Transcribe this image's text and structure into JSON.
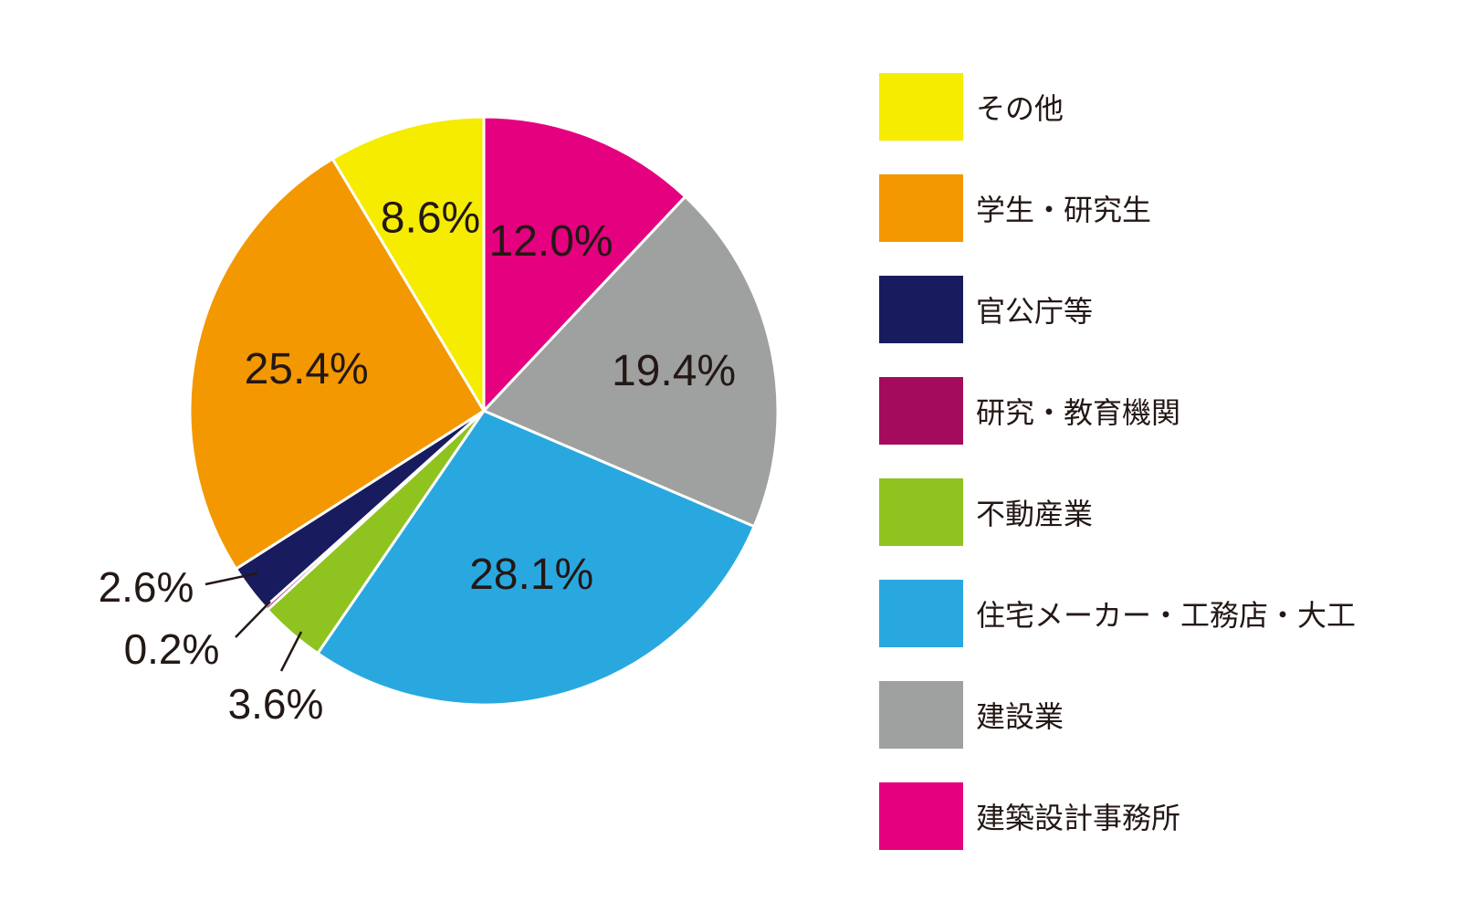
{
  "chart_data": {
    "type": "pie",
    "start": "12 o'clock",
    "direction": "clockwise",
    "slices": [
      {
        "name": "建築設計事務所",
        "value": 12.0,
        "label": "12.0%",
        "color": "#e4007f"
      },
      {
        "name": "建設業",
        "value": 19.4,
        "label": "19.4%",
        "color": "#9fa0a0"
      },
      {
        "name": "住宅メーカー・工務店・大工",
        "value": 28.1,
        "label": "28.1%",
        "color": "#29a8e0"
      },
      {
        "name": "不動産業",
        "value": 3.6,
        "label": "3.6%",
        "color": "#8fc31f"
      },
      {
        "name": "研究・教育機関",
        "value": 0.2,
        "label": "0.2%",
        "color": "#a40b5d"
      },
      {
        "name": "官公庁等",
        "value": 2.6,
        "label": "2.6%",
        "color": "#181c5e"
      },
      {
        "name": "学生・研究生",
        "value": 25.4,
        "label": "25.4%",
        "color": "#f39800"
      },
      {
        "name": "その他",
        "value": 8.6,
        "label": "8.6%",
        "color": "#f6ec00"
      }
    ],
    "legend": {
      "placement": "right",
      "entries": [
        {
          "label": "その他",
          "color": "#f6ec00"
        },
        {
          "label": "学生・研究生",
          "color": "#f39800"
        },
        {
          "label": "官公庁等",
          "color": "#181c5e"
        },
        {
          "label": "研究・教育機関",
          "color": "#a40b5d"
        },
        {
          "label": "不動産業",
          "color": "#8fc31f"
        },
        {
          "label": "住宅メーカー・工務店・大工",
          "color": "#29a8e0"
        },
        {
          "label": "建設業",
          "color": "#9fa0a0"
        },
        {
          "label": "建築設計事務所",
          "color": "#e4007f"
        }
      ]
    }
  }
}
